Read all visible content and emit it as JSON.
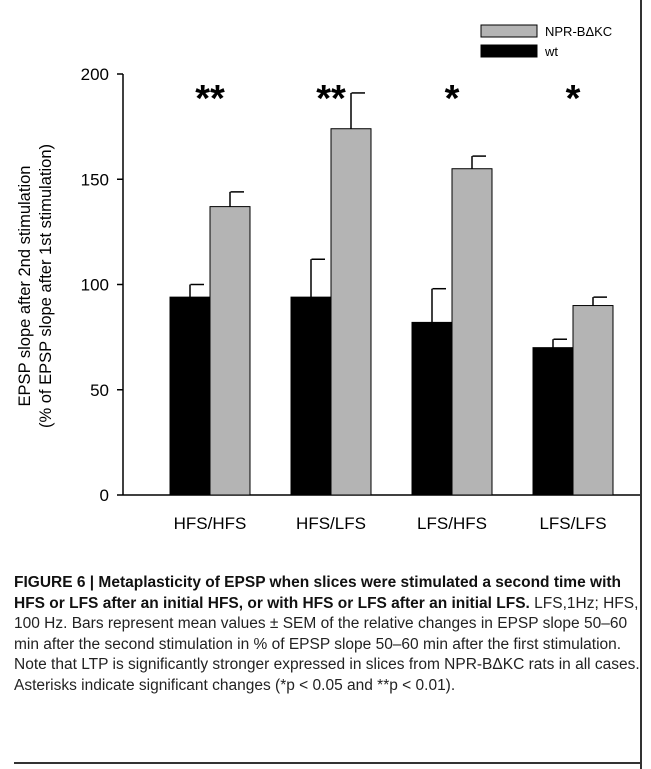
{
  "chart_data": {
    "type": "bar",
    "categories": [
      "HFS/HFS",
      "HFS/LFS",
      "LFS/HFS",
      "LFS/LFS"
    ],
    "series": [
      {
        "name": "wt",
        "values": [
          94,
          94,
          82,
          70
        ],
        "errors": [
          6,
          18,
          16,
          4
        ],
        "color": "#000000"
      },
      {
        "name": "NPR-BΔKC",
        "values": [
          137,
          174,
          155,
          90
        ],
        "errors": [
          7,
          17,
          6,
          4
        ],
        "color": "#b4b4b4"
      }
    ],
    "significance": [
      "**",
      "**",
      "*",
      "*"
    ],
    "ylabel_line1": "EPSP slope after 2nd stimulation",
    "ylabel_line2": "(% of EPSP slope after 1st stimulation)",
    "yticks": [
      0,
      50,
      100,
      150,
      200
    ],
    "ylim": [
      0,
      200
    ],
    "legend_placement": "top-right",
    "legend_order": [
      "NPR-BΔKC",
      "wt"
    ]
  },
  "caption": {
    "bold": "FIGURE 6 | Metaplasticity of EPSP when slices were stimulated a second time with HFS or LFS after an initial HFS, or with HFS or LFS after an initial LFS.",
    "text": " LFS,1Hz; HFS, 100 Hz. Bars represent mean values ± SEM of the relative changes in EPSP slope 50–60 min after the second stimulation in % of EPSP slope 50–60 min after the first stimulation. Note that LTP is significantly stronger expressed in slices from NPR-BΔKC rats in all cases. Asterisks indicate significant changes (*p < 0.05 and **p < 0.01)."
  }
}
